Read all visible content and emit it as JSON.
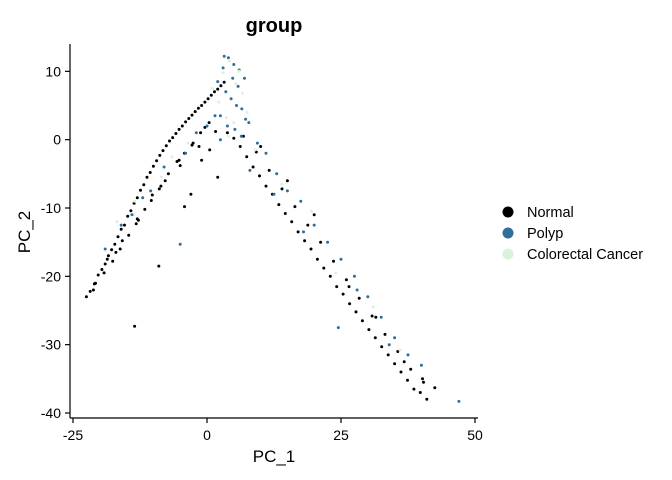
{
  "chart_data": {
    "type": "scatter",
    "title": "group",
    "xlabel": "PC_1",
    "ylabel": "PC_2",
    "xlim": [
      -25,
      50
    ],
    "ylim": [
      -40,
      14
    ],
    "xticks": [
      -25,
      0,
      25,
      50
    ],
    "yticks": [
      -40,
      -30,
      -20,
      -10,
      0,
      10
    ],
    "grid": false,
    "legend_position": "right",
    "series": [
      {
        "name": "Normal",
        "color": "#000000",
        "x": [
          -22.5,
          -21.8,
          -21.0,
          -20.3,
          -19.6,
          -19.0,
          -18.4,
          -17.8,
          -17.2,
          -16.6,
          -16.0,
          -15.4,
          -14.8,
          -14.2,
          -13.6,
          -13.0,
          -12.4,
          -11.8,
          -11.2,
          -10.6,
          -10.0,
          -9.4,
          -8.8,
          -8.2,
          -7.6,
          -7.0,
          -6.4,
          -5.8,
          -5.2,
          -4.6,
          -4.0,
          -3.4,
          -2.8,
          -2.2,
          -1.6,
          -1.0,
          -0.4,
          0.2,
          0.8,
          1.4,
          2.0,
          2.6,
          3.2,
          -20.8,
          -19.2,
          -17.6,
          -16.2,
          -14.6,
          -13.2,
          -11.6,
          -10.2,
          -8.6,
          -7.2,
          -5.6,
          -4.2,
          -2.6,
          -1.2,
          0.4,
          -18.6,
          -15.8,
          -13.0,
          -10.4,
          -7.8,
          -5.2,
          -2.8,
          -0.4,
          -21.2,
          -17.0,
          -12.8,
          -8.9,
          -5.0,
          -1.5,
          1.6,
          -13.5,
          -9.0,
          -4.2,
          0.5,
          3.8,
          5.0,
          6.2,
          7.4,
          8.6,
          9.8,
          11.0,
          12.2,
          13.4,
          14.6,
          15.8,
          17.0,
          18.2,
          19.4,
          20.6,
          21.8,
          23.0,
          24.2,
          25.4,
          26.6,
          27.8,
          29.0,
          30.2,
          31.4,
          32.6,
          33.8,
          35.0,
          36.2,
          37.4,
          38.6,
          39.8,
          41.0,
          6.8,
          9.2,
          11.6,
          14.0,
          16.4,
          18.8,
          21.2,
          23.6,
          26.0,
          28.4,
          30.8,
          33.2,
          35.6,
          38.0,
          40.4,
          10.0,
          15.0,
          20.0,
          26.5,
          31.5,
          36.8,
          40.2,
          42.5,
          -1.0,
          2.0,
          -3.0
        ],
        "y": [
          -23.0,
          -22.2,
          -21.1,
          -19.8,
          -19.0,
          -18.2,
          -17.0,
          -16.1,
          -15.3,
          -14.2,
          -13.1,
          -12.5,
          -11.2,
          -10.4,
          -9.3,
          -8.5,
          -7.4,
          -6.6,
          -5.5,
          -4.8,
          -3.9,
          -3.1,
          -2.3,
          -1.6,
          -0.9,
          -0.2,
          0.3,
          0.9,
          1.5,
          2.0,
          2.6,
          3.1,
          3.6,
          4.1,
          4.6,
          5.0,
          5.5,
          6.0,
          6.5,
          7.0,
          7.4,
          7.9,
          8.4,
          -21.0,
          -19.5,
          -17.8,
          -16.0,
          -14.0,
          -12.3,
          -10.2,
          -8.1,
          -6.8,
          -5.0,
          -3.2,
          -2.0,
          -0.5,
          1.0,
          2.5,
          -17.5,
          -14.8,
          -11.6,
          -8.9,
          -6.0,
          -3.0,
          -0.8,
          1.8,
          -22.0,
          -16.5,
          -11.8,
          -7.2,
          -3.8,
          -1.0,
          1.2,
          -27.3,
          -18.5,
          -9.8,
          -1.5,
          1.0,
          0.2,
          -1.0,
          -2.5,
          -4.0,
          -5.3,
          -6.8,
          -8.0,
          -9.5,
          -10.8,
          -12.0,
          -13.5,
          -14.8,
          -16.0,
          -17.5,
          -18.8,
          -20.0,
          -21.5,
          -22.6,
          -24.0,
          -25.2,
          -26.5,
          -27.8,
          -29.0,
          -30.3,
          -31.5,
          -32.8,
          -34.0,
          -35.2,
          -36.5,
          -37.0,
          -38.0,
          0.5,
          -1.8,
          -4.5,
          -7.2,
          -9.8,
          -12.5,
          -15.0,
          -17.8,
          -20.5,
          -23.2,
          -25.8,
          -28.5,
          -31.0,
          -33.6,
          -35.5,
          -1.0,
          -6.0,
          -11.0,
          -21.5,
          -26.0,
          -32.5,
          -35.0,
          -36.3,
          -3.0,
          -5.5,
          -8.0
        ]
      },
      {
        "name": "Polyp",
        "color": "#2f6f99",
        "x": [
          2.0,
          3.0,
          4.0,
          5.0,
          6.0,
          7.0,
          3.5,
          4.5,
          5.5,
          6.5,
          2.5,
          3.8,
          5.2,
          6.4,
          7.2,
          -4.0,
          -2.0,
          0.0,
          1.5,
          -8.0,
          -12.0,
          -16.0,
          -19.0,
          7.8,
          9.4,
          11.0,
          13.0,
          15.0,
          17.5,
          20.0,
          22.5,
          25.0,
          27.5,
          30.0,
          32.5,
          35.0,
          37.5,
          40.0,
          47.0,
          -5.0,
          2.5,
          8.0,
          12.5,
          18.0,
          24.5,
          28.0,
          34.0,
          -10.5,
          -14.0,
          4.8,
          5.8,
          3.2
        ],
        "y": [
          8.5,
          10.5,
          12.0,
          11.0,
          10.2,
          9.0,
          7.0,
          6.0,
          5.0,
          4.5,
          3.5,
          2.0,
          1.5,
          0.5,
          3.0,
          -2.0,
          1.0,
          2.0,
          3.5,
          -4.0,
          -8.5,
          -12.5,
          -16.0,
          2.5,
          -0.5,
          -2.0,
          -5.0,
          -7.5,
          -9.0,
          -12.5,
          -15.0,
          -17.5,
          -20.0,
          -23.0,
          -26.0,
          -29.0,
          -31.5,
          -33.0,
          -38.3,
          -15.3,
          0.0,
          -4.5,
          -8.0,
          -13.5,
          -27.5,
          -22.0,
          -30.0,
          -7.5,
          -11.0,
          9.0,
          7.8,
          12.2
        ]
      },
      {
        "name": "Colorectal Cancer",
        "color": "#d9f2dc",
        "x": [
          3.0,
          4.2,
          5.4,
          6.6,
          2.2,
          7.5,
          5.0,
          -3.5,
          -8.5,
          -13.5,
          -16.8,
          9.0,
          14.0,
          19.5,
          24.0,
          31.0,
          36.0,
          4.0,
          6.0,
          1.0,
          3.6,
          -6.5
        ],
        "y": [
          9.8,
          11.5,
          8.2,
          6.8,
          5.5,
          4.0,
          2.5,
          -0.5,
          -5.5,
          -9.0,
          -12.0,
          -1.5,
          -6.5,
          -10.5,
          -19.5,
          -24.5,
          -30.8,
          0.5,
          10.0,
          7.5,
          3.2,
          -2.5
        ]
      }
    ]
  }
}
